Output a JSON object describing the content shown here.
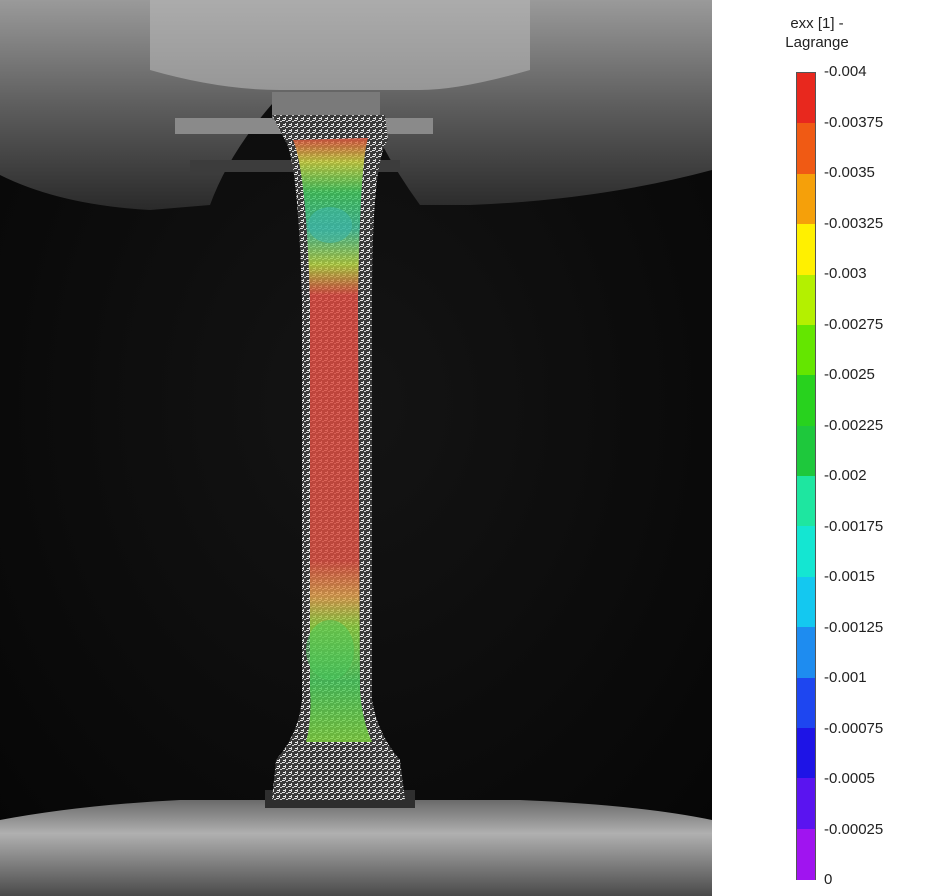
{
  "legend": {
    "title_line1": "exx [1] -",
    "title_line2": "Lagrange",
    "ticks": [
      "-0.004",
      "-0.00375",
      "-0.0035",
      "-0.00325",
      "-0.003",
      "-0.00275",
      "-0.0025",
      "-0.00225",
      "-0.002",
      "-0.00175",
      "-0.0015",
      "-0.00125",
      "-0.001",
      "-0.00075",
      "-0.0005",
      "-0.00025",
      "0"
    ],
    "colors": [
      "#e8281e",
      "#f05a14",
      "#f5a00a",
      "#fff000",
      "#b4f000",
      "#64e600",
      "#28d21e",
      "#1ec83c",
      "#1ee6a0",
      "#14e6d2",
      "#14c8f0",
      "#1e8cf0",
      "#1e46f0",
      "#1e14e6",
      "#5a14f0",
      "#a014f0",
      "#e614f0"
    ]
  }
}
